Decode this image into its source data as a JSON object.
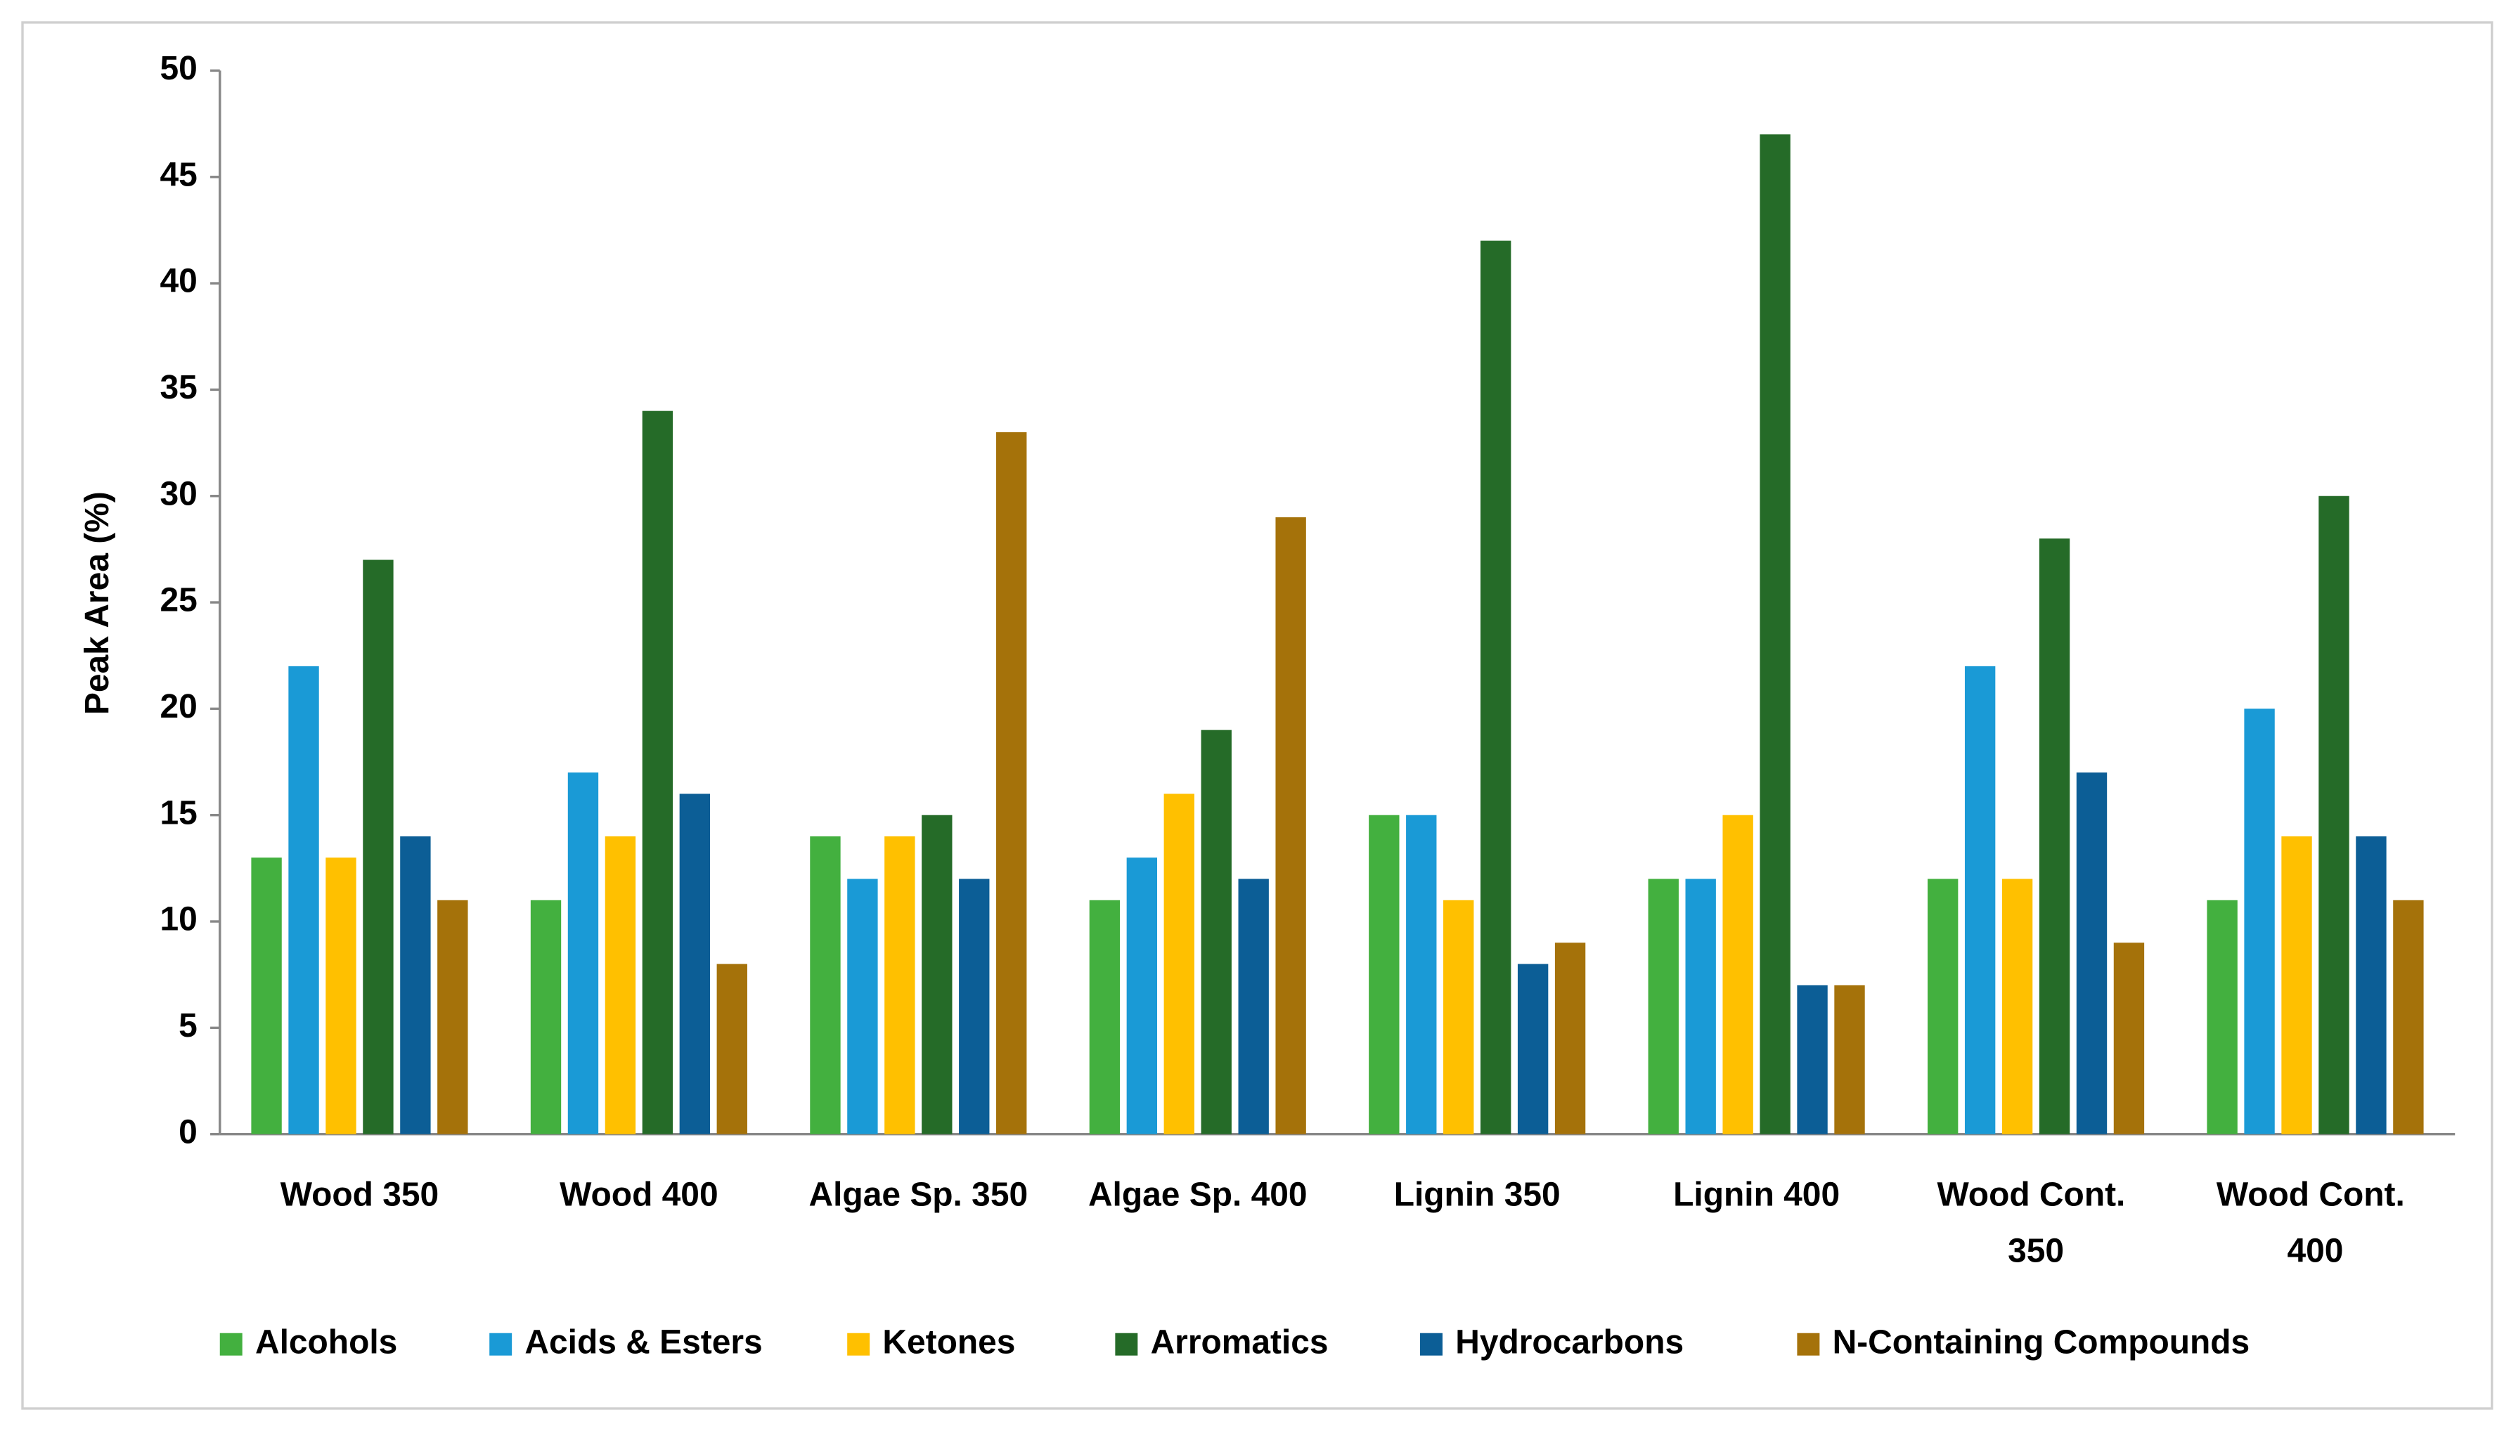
{
  "chart_data": {
    "type": "bar",
    "y_label": "Peak Area (%)",
    "categories": [
      "Wood 350",
      "Wood 400",
      "Algae Sp. 350",
      "Algae Sp. 400",
      "Lignin 350",
      "Lignin 400",
      "Wood Cont. 350",
      "Wood Cont. 400"
    ],
    "series": [
      {
        "name": "Alcohols",
        "color": "#43b03f",
        "values": [
          13,
          11,
          14,
          11,
          15,
          12,
          12,
          11
        ]
      },
      {
        "name": "Acids & Esters",
        "color": "#1a9ad6",
        "values": [
          22,
          17,
          12,
          13,
          15,
          12,
          22,
          20
        ]
      },
      {
        "name": "Ketones",
        "color": "#ffc000",
        "values": [
          13,
          14,
          14,
          16,
          11,
          15,
          12,
          14
        ]
      },
      {
        "name": "Arromatics",
        "color": "#256b28",
        "values": [
          27,
          34,
          15,
          19,
          42,
          47,
          28,
          30
        ]
      },
      {
        "name": "Hydrocarbons",
        "color": "#0c5e96",
        "values": [
          14,
          16,
          12,
          12,
          8,
          7,
          17,
          14
        ]
      },
      {
        "name": "N-Containing Compounds",
        "color": "#a5720a",
        "values": [
          11,
          8,
          33,
          29,
          9,
          7,
          9,
          11
        ]
      }
    ],
    "ylim": [
      0,
      50
    ],
    "yticks": [
      0,
      5,
      10,
      15,
      20,
      25,
      30,
      35,
      40,
      45,
      50
    ],
    "grid": false,
    "legend": "bottom"
  }
}
